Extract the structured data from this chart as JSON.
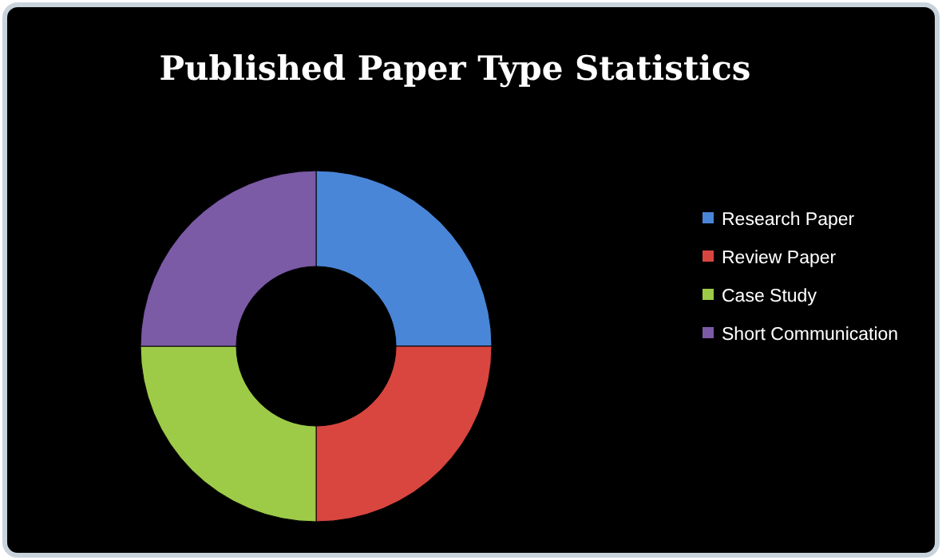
{
  "chart_data": {
    "type": "donut",
    "title": "Published Paper Type Statistics",
    "categories": [
      "Research Paper",
      "Review Paper",
      "Case Study",
      "Short Communication"
    ],
    "values": [
      25,
      25,
      25,
      25
    ],
    "colors": [
      "#4a86d8",
      "#d9463f",
      "#9dcb48",
      "#7b5aa6"
    ],
    "legend": "right"
  }
}
